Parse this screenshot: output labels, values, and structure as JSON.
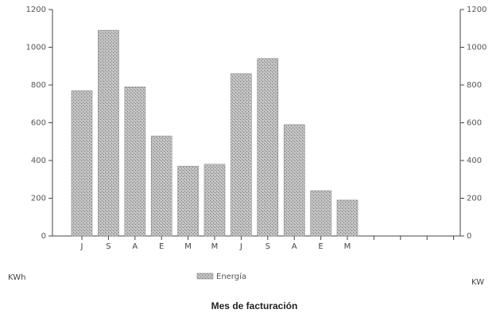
{
  "chart_data": {
    "type": "bar",
    "categories": [
      "J",
      "S",
      "A",
      "E",
      "M",
      "M",
      "J",
      "S",
      "A",
      "E",
      "M"
    ],
    "series": [
      {
        "name": "Energía",
        "values": [
          770,
          1090,
          790,
          530,
          370,
          380,
          860,
          940,
          590,
          240,
          190
        ]
      }
    ],
    "y_left": {
      "ticks": [
        "0",
        "200",
        "400",
        "600",
        "800",
        "1000",
        "1200"
      ],
      "range": [
        0,
        1200
      ]
    },
    "y_right": {
      "ticks": [
        "0",
        "200",
        "400",
        "600",
        "800",
        "1000",
        "1200"
      ],
      "range": [
        0,
        1200
      ]
    },
    "x_axis_extent": 16,
    "left_unit_label": "KWh",
    "right_unit_label": "KW",
    "legend_label": "Energía",
    "xlabel": "Mes de facturación",
    "legend_position": "bottom-center",
    "grid": false,
    "bar_color": "#aaaaaa"
  }
}
